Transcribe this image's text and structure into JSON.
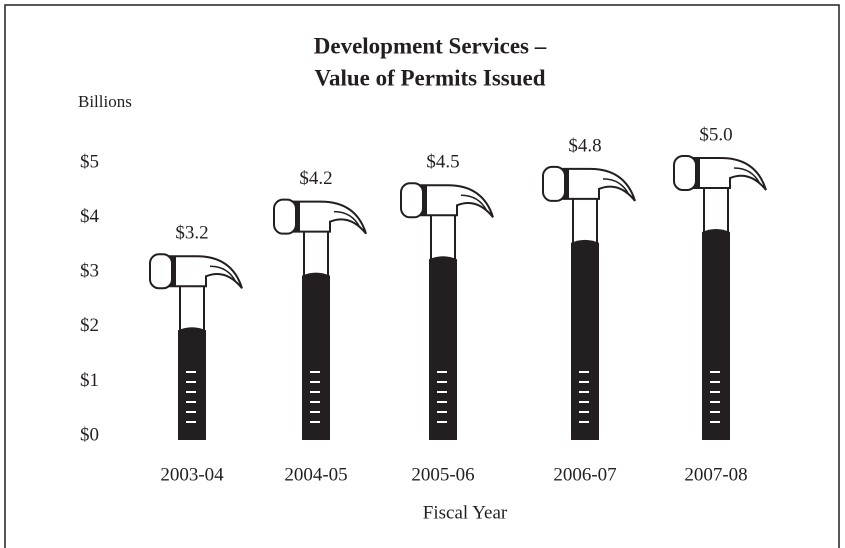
{
  "chart_data": {
    "type": "pictograph",
    "title": "Development Services –",
    "subtitle": "Value of Permits Issued",
    "y_label": "Billions",
    "x_label": "Fiscal Year",
    "categories": [
      "2003-04",
      "2004-05",
      "2005-06",
      "2006-07",
      "2007-08"
    ],
    "values": [
      3.2,
      4.2,
      4.5,
      4.8,
      5.0
    ],
    "value_labels": [
      "$3.2",
      "$4.2",
      "$4.5",
      "$4.8",
      "$5.0"
    ],
    "color": "#231f20",
    "ylim": [
      0,
      5.5
    ],
    "yticks": [
      {
        "value": 0,
        "label": "$0"
      },
      {
        "value": 1,
        "label": "$1"
      },
      {
        "value": 2,
        "label": "$2"
      },
      {
        "value": 3,
        "label": "$3"
      },
      {
        "value": 4,
        "label": "$4"
      },
      {
        "value": 5,
        "label": "$5"
      }
    ],
    "grid": false
  }
}
